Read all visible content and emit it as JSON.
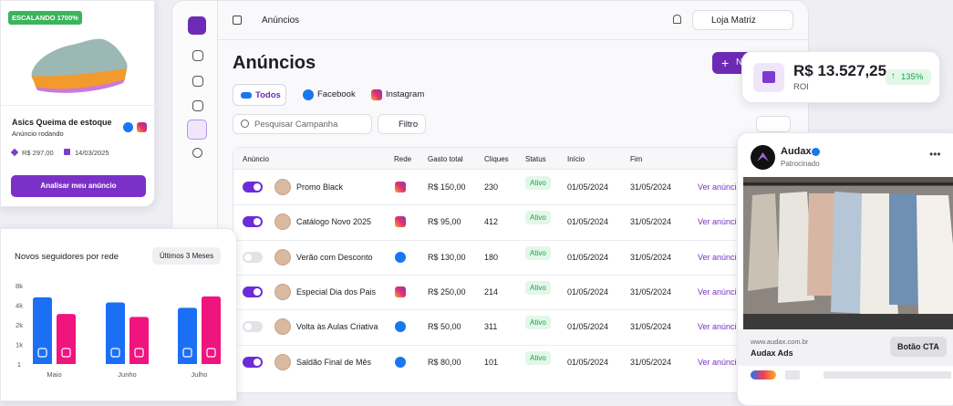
{
  "product_card": {
    "badge": "ESCALANDO 1700%",
    "title": "Asics Queima de estoque",
    "status": "Anúncio rodando",
    "price": "R$ 297,00",
    "date": "14/03/2025",
    "button": "Analisar meu anúncio"
  },
  "app": {
    "breadcrumb": "Anúncios",
    "store": "Loja Matriz",
    "page_title": "Anúncios",
    "new_button": "N",
    "tabs": [
      "Todos",
      "Facebook",
      "Instagram"
    ],
    "search_placeholder": "Pesquisar Campanha",
    "filter": "Filtro",
    "table": {
      "headers": [
        "Anúncio",
        "Rede",
        "Gasto total",
        "Cliques",
        "Status",
        "Início",
        "Fim"
      ],
      "rows": [
        {
          "active": true,
          "name": "Promo Black",
          "network": "instagram",
          "spend": "R$ 150,00",
          "clicks": "230",
          "status": "Ativo",
          "start": "01/05/2024",
          "end": "31/05/2024",
          "link": "Ver anúncio"
        },
        {
          "active": true,
          "name": "Catálogo Novo 2025",
          "network": "instagram",
          "spend": "R$ 95,00",
          "clicks": "412",
          "status": "Ativo",
          "start": "01/05/2024",
          "end": "31/05/2024",
          "link": "Ver anúncio"
        },
        {
          "active": false,
          "name": "Verão com Desconto",
          "network": "facebook",
          "spend": "R$ 130,00",
          "clicks": "180",
          "status": "Ativo",
          "start": "01/05/2024",
          "end": "31/05/2024",
          "link": "Ver anúncio"
        },
        {
          "active": true,
          "name": "Especial Dia dos Pais",
          "network": "instagram",
          "spend": "R$ 250,00",
          "clicks": "214",
          "status": "Ativo",
          "start": "01/05/2024",
          "end": "31/05/2024",
          "link": "Ver anúncio"
        },
        {
          "active": false,
          "name": "Volta às Aulas Criativa",
          "network": "facebook",
          "spend": "R$ 50,00",
          "clicks": "311",
          "status": "Ativo",
          "start": "01/05/2024",
          "end": "31/05/2024",
          "link": "Ver anúncio"
        },
        {
          "active": true,
          "name": "Saldão Final de Mês",
          "network": "facebook",
          "spend": "R$ 80,00",
          "clicks": "101",
          "status": "Ativo",
          "start": "01/05/2024",
          "end": "31/05/2024",
          "link": "Ver anúncio"
        }
      ]
    }
  },
  "roi_card": {
    "value": "R$ 13.527,25",
    "label": "ROI",
    "change": "135%"
  },
  "ad_card": {
    "brand": "Audax",
    "sponsored": "Patrocinado",
    "url": "www.audax.com.br",
    "name": "Audax Ads",
    "cta": "Botão CTA"
  },
  "chart_data": {
    "type": "bar",
    "title": "Novos seguidores por rede",
    "period": "Últimos 3 Meses",
    "categories": [
      "Maio",
      "Junho",
      "Julho"
    ],
    "series": [
      {
        "name": "Facebook",
        "color": "#1b6ff5",
        "values": [
          5600,
          4550,
          3730
        ]
      },
      {
        "name": "Instagram",
        "color": "#f0147f",
        "values": [
          3100,
          2800,
          5800
        ]
      }
    ],
    "ylim": [
      1,
      8000
    ],
    "yticks": [
      1,
      {
        "value": 1000,
        "label": "1k"
      },
      {
        "value": 2000,
        "label": "2k"
      },
      {
        "value": 4000,
        "label": "4k"
      },
      {
        "value": 8000,
        "label": "8k"
      }
    ]
  }
}
